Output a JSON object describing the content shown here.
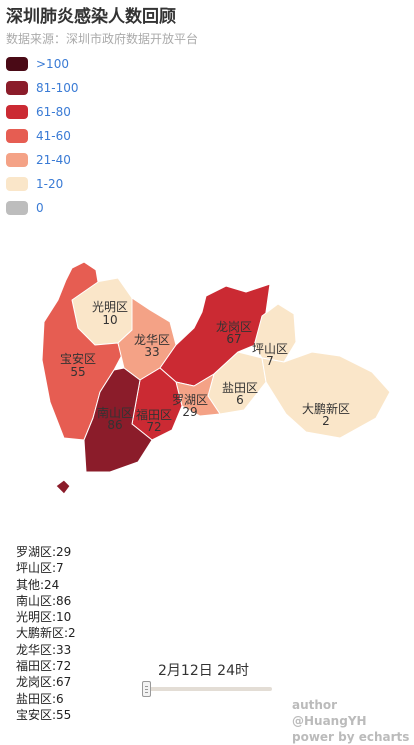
{
  "title": "深圳肺炎感染人数回顾",
  "subtitle": "数据来源：深圳市政府数据开放平台",
  "legend": [
    {
      "label": ">100",
      "color": "#4a0a16"
    },
    {
      "label": "81-100",
      "color": "#8b1c2a"
    },
    {
      "label": "61-80",
      "color": "#cb2a33"
    },
    {
      "label": "41-60",
      "color": "#e65d52"
    },
    {
      "label": "21-40",
      "color": "#f4a286"
    },
    {
      "label": "1-20",
      "color": "#fae6c9"
    },
    {
      "label": "0",
      "color": "#bdbdbd"
    }
  ],
  "districts": [
    {
      "name": "光明区",
      "value": "10"
    },
    {
      "name": "龙岗区",
      "value": "67"
    },
    {
      "name": "宝安区",
      "value": "55"
    },
    {
      "name": "龙华区",
      "value": "33"
    },
    {
      "name": "坪山区",
      "value": "7"
    },
    {
      "name": "盐田区",
      "value": "6"
    },
    {
      "name": "罗湖区",
      "value": "29"
    },
    {
      "name": "南山区",
      "value": "86"
    },
    {
      "name": "福田区",
      "value": "72"
    },
    {
      "name": "大鹏新区",
      "value": "2"
    }
  ],
  "stats": [
    "罗湖区:29",
    "坪山区:7",
    "其他:24",
    "南山区:86",
    "光明区:10",
    "大鹏新区:2",
    "龙华区:33",
    "福田区:72",
    "龙岗区:67",
    "盐田区:6",
    "宝安区:55"
  ],
  "timeline": {
    "current": "2月12日 24时",
    "progress": 0.02
  },
  "credits": {
    "author": "author @HuangYH",
    "power": "power by echarts"
  }
}
